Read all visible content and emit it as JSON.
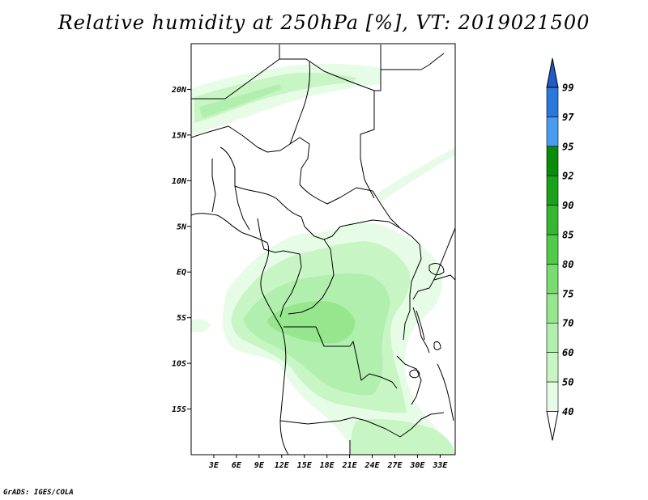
{
  "title": "Relative humidity at 250hPa [%], VT: 2019021500",
  "credit": "GrADS: IGES/COLA",
  "map": {
    "lat_labels": [
      {
        "text": "20N",
        "lat": 20
      },
      {
        "text": "15N",
        "lat": 15
      },
      {
        "text": "10N",
        "lat": 10
      },
      {
        "text": "5N",
        "lat": 5
      },
      {
        "text": "EQ",
        "lat": 0
      },
      {
        "text": "5S",
        "lat": -5
      },
      {
        "text": "10S",
        "lat": -10
      },
      {
        "text": "15S",
        "lat": -15
      }
    ],
    "lon_labels": [
      {
        "text": "3E",
        "lon": 3
      },
      {
        "text": "6E",
        "lon": 6
      },
      {
        "text": "9E",
        "lon": 9
      },
      {
        "text": "12E",
        "lon": 12
      },
      {
        "text": "15E",
        "lon": 15
      },
      {
        "text": "18E",
        "lon": 18
      },
      {
        "text": "21E",
        "lon": 21
      },
      {
        "text": "24E",
        "lon": 24
      },
      {
        "text": "27E",
        "lon": 27
      },
      {
        "text": "30E",
        "lon": 30
      },
      {
        "text": "33E",
        "lon": 33
      }
    ],
    "lon_range": [
      0,
      35
    ],
    "lat_range": [
      -20,
      25
    ],
    "fill_colors": {
      "40": "#e6fce6",
      "50": "#c8f5c4",
      "60": "#b1efae",
      "70": "#96e68e"
    }
  },
  "colorbar": {
    "labels": [
      "40",
      "50",
      "60",
      "70",
      "75",
      "80",
      "85",
      "90",
      "92",
      "95",
      "97",
      "99"
    ],
    "colors": [
      "#ffffff",
      "#e6fce6",
      "#c8f5c4",
      "#b1efae",
      "#96e68e",
      "#78dc6e",
      "#50cc4a",
      "#36b732",
      "#1aa21a",
      "#0a8c0a",
      "#4a9cf0",
      "#2a78dc",
      "#1e5ac8"
    ]
  }
}
